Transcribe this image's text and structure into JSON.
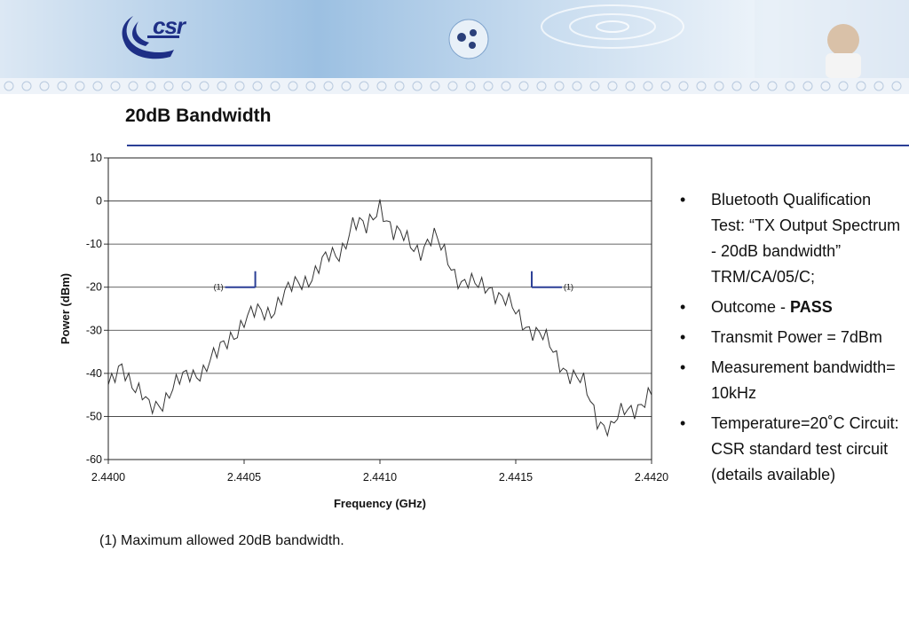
{
  "header": {
    "logo_text": "csr"
  },
  "slide": {
    "title": "20dB Bandwidth"
  },
  "chart_data": {
    "type": "line",
    "title": "",
    "xlabel": "Frequency (GHz)",
    "ylabel": "Power (dBm)",
    "xlim": [
      2.44,
      2.442
    ],
    "ylim": [
      -60,
      10
    ],
    "x_ticks": [
      "2.4400",
      "2.4405",
      "2.4410",
      "2.4415",
      "2.4420"
    ],
    "y_ticks": [
      "10",
      "0",
      "-10",
      "-20",
      "-30",
      "-40",
      "-50",
      "-60"
    ],
    "grid": "horizontal",
    "legend": "none",
    "series": [
      {
        "color": "#333333",
        "x": [
          2.44,
          2.44005,
          2.4401,
          2.44015,
          2.4402,
          2.44025,
          2.4403,
          2.44035,
          2.4404,
          2.44045,
          2.4405,
          2.44055,
          2.4406,
          2.44065,
          2.4407,
          2.44075,
          2.4408,
          2.44085,
          2.4409,
          2.44095,
          2.441,
          2.44105,
          2.4411,
          2.44115,
          2.4412,
          2.44125,
          2.4413,
          2.44135,
          2.4414,
          2.44145,
          2.4415,
          2.44155,
          2.4416,
          2.44165,
          2.4417,
          2.44175,
          2.4418,
          2.44185,
          2.4419,
          2.44195,
          2.442
        ],
        "y": [
          -44,
          -37,
          -44,
          -48,
          -46,
          -43,
          -40,
          -39,
          -36,
          -31,
          -28,
          -26,
          -25,
          -22,
          -19,
          -17,
          -14,
          -12,
          -5,
          -7,
          0,
          -8,
          -9,
          -11,
          -9,
          -13,
          -19,
          -20,
          -19,
          -23,
          -26,
          -29,
          -32,
          -36,
          -40,
          -43,
          -50,
          -53,
          -49,
          -47,
          -45
        ]
      }
    ],
    "annotations": [
      {
        "text": "(1)",
        "x": 2.44043,
        "y": -20,
        "side": "left"
      },
      {
        "text": "(1)",
        "x": 2.44167,
        "y": -20,
        "side": "right"
      }
    ]
  },
  "footnote": "(1) Maximum allowed 20dB bandwidth.",
  "bullets": [
    {
      "text": "Bluetooth Qualification Test: “TX Output Spectrum - 20dB bandwidth” TRM/CA/05/C;"
    },
    {
      "prefix": "Outcome - ",
      "strong": "PASS"
    },
    {
      "text": "Transmit Power = 7dBm"
    },
    {
      "text": "Measurement bandwidth= 10kHz"
    },
    {
      "text": "Temperature=20˚C Circuit: CSR standard test circuit (details available)"
    }
  ]
}
